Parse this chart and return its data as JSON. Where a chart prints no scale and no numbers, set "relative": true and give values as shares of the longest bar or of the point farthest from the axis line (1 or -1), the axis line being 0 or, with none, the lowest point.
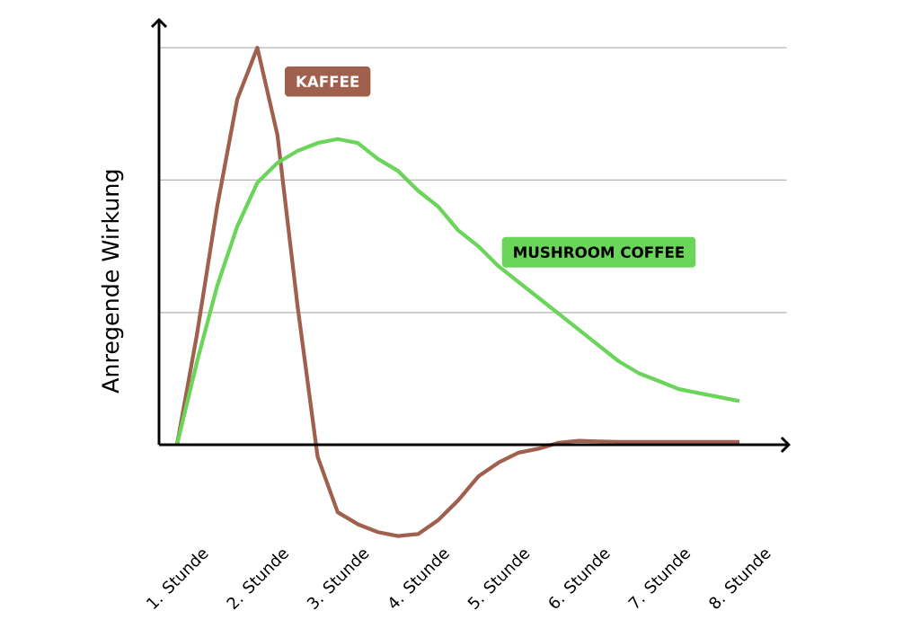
{
  "chart_data": {
    "type": "line",
    "ylabel": "Anregende Wirkung",
    "relative": true,
    "ref_lines": [
      {
        "axis": "y",
        "value": 0.333,
        "color": "#b2b2b2"
      },
      {
        "axis": "y",
        "value": 0.667,
        "color": "#b2b2b2"
      },
      {
        "axis": "y",
        "value": 1.0,
        "color": "#b2b2b2"
      }
    ],
    "marker": "none",
    "line_style": "solid",
    "categories": [
      "1. Stunde",
      null,
      null,
      null,
      "2. Stunde",
      null,
      null,
      null,
      "3. Stunde",
      null,
      null,
      null,
      "4. Stunde",
      null,
      null,
      null,
      "5. Stunde",
      null,
      null,
      null,
      "6. Stunde",
      null,
      null,
      null,
      "7. Stunde",
      null,
      null,
      null,
      "8. Stunde"
    ],
    "series": [
      {
        "name": "KAFFEE",
        "color": "#a0604e",
        "values": [
          0,
          0.28,
          0.6,
          0.87,
          1.0,
          0.78,
          0.35,
          -0.03,
          -0.17,
          -0.2,
          -0.22,
          -0.23,
          -0.225,
          -0.19,
          -0.14,
          -0.08,
          -0.045,
          -0.02,
          -0.01,
          0.005,
          0.01,
          0.008,
          0.007,
          0.007,
          0.007,
          0.007,
          0.007,
          0.007,
          0.007
        ]
      },
      {
        "name": "MUSHROOM COFFEE",
        "color": "#6bd45a",
        "values": [
          0,
          0.21,
          0.4,
          0.55,
          0.66,
          0.71,
          0.74,
          0.76,
          0.77,
          0.76,
          0.72,
          0.69,
          0.64,
          0.6,
          0.54,
          0.5,
          0.45,
          0.41,
          0.37,
          0.33,
          0.29,
          0.25,
          0.21,
          0.18,
          0.16,
          0.14,
          0.13,
          0.12,
          0.11
        ]
      }
    ]
  }
}
